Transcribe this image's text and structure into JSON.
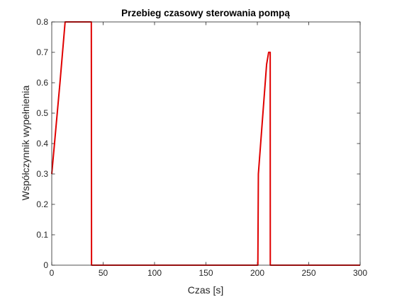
{
  "chart_data": {
    "type": "line",
    "title": "Przebieg czasowy sterowania pompą",
    "xlabel": "Czas [s]",
    "ylabel": "Współczynnik wypełnienia",
    "xlim": [
      0,
      300
    ],
    "ylim": [
      0,
      0.8
    ],
    "xticks": [
      0,
      50,
      100,
      150,
      200,
      250,
      300
    ],
    "yticks": [
      0,
      0.1,
      0.2,
      0.3,
      0.4,
      0.5,
      0.6,
      0.7,
      0.8
    ],
    "xtick_labels": [
      "0",
      "50",
      "100",
      "150",
      "200",
      "250",
      "300"
    ],
    "ytick_labels": [
      "0",
      "0.1",
      "0.2",
      "0.3",
      "0.4",
      "0.5",
      "0.6",
      "0.7",
      "0.8"
    ],
    "grid": false,
    "box": true,
    "colors": {
      "line": "#e00000",
      "axes": "#262626",
      "background": "#ffffff"
    },
    "series": [
      {
        "x": [
          0,
          4,
          8,
          13,
          20,
          30,
          38.5,
          38.6,
          38.7,
          200,
          200.5,
          201,
          205,
          209,
          211,
          212.5,
          212.6,
          213,
          300
        ],
        "y": [
          0.3,
          0.45,
          0.6,
          0.8,
          0.8,
          0.8,
          0.8,
          0.5,
          0,
          0,
          0,
          0.3,
          0.48,
          0.66,
          0.7,
          0.7,
          0,
          0,
          0
        ]
      }
    ]
  }
}
